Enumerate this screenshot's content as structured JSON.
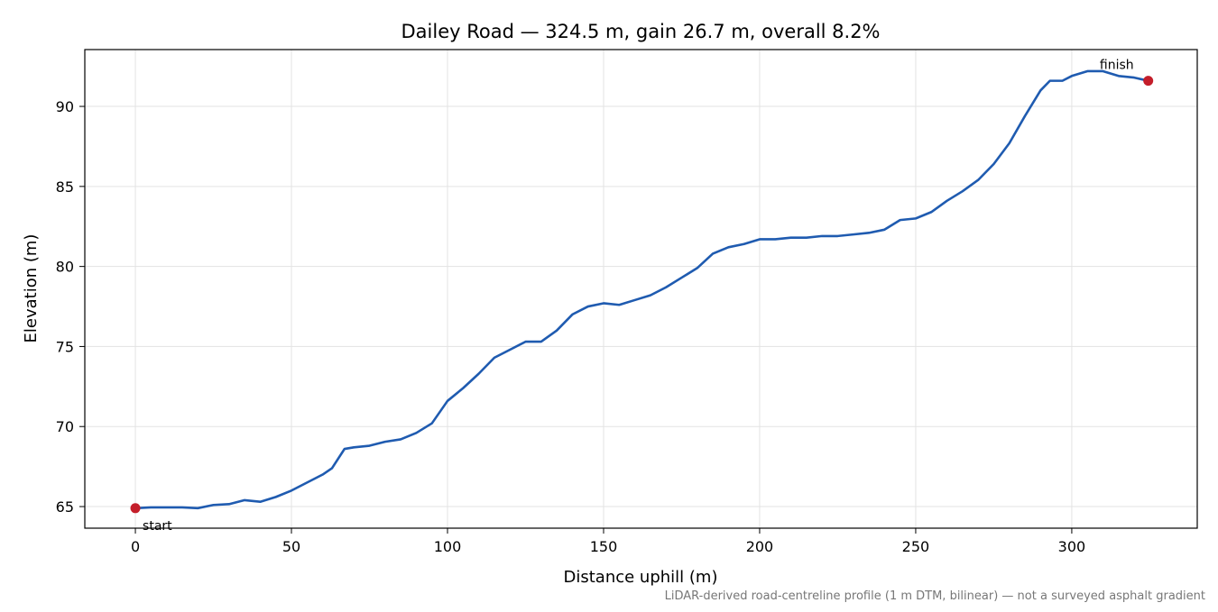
{
  "chart_data": {
    "type": "line",
    "title": "Dailey Road — 324.5 m, gain 26.7 m, overall 8.2%",
    "x_label": "Distance uphill (m)",
    "y_label": "Elevation (m)",
    "footnote": "LiDAR-derived road-centreline profile (1 m DTM, bilinear) — not a surveyed asphalt gradient",
    "x": [
      0,
      5,
      10,
      15,
      20,
      25,
      30,
      35,
      40,
      45,
      50,
      55,
      60,
      63,
      67,
      70,
      75,
      80,
      85,
      90,
      95,
      100,
      105,
      110,
      115,
      120,
      125,
      130,
      135,
      140,
      145,
      150,
      155,
      160,
      165,
      170,
      175,
      180,
      185,
      190,
      195,
      200,
      205,
      210,
      215,
      220,
      225,
      230,
      235,
      240,
      245,
      250,
      255,
      260,
      265,
      270,
      275,
      280,
      285,
      290,
      293,
      297,
      300,
      305,
      310,
      315,
      320,
      324.5
    ],
    "series": [
      {
        "color": "#1f5bb0",
        "values": [
          64.9,
          64.95,
          64.95,
          64.95,
          64.9,
          65.1,
          65.15,
          65.4,
          65.3,
          65.6,
          66.0,
          66.5,
          67.0,
          67.4,
          68.6,
          68.7,
          68.8,
          69.05,
          69.2,
          69.6,
          70.2,
          71.6,
          72.4,
          73.3,
          74.3,
          74.8,
          75.3,
          75.3,
          76.0,
          77.0,
          77.5,
          77.7,
          77.6,
          77.9,
          78.2,
          78.7,
          79.3,
          79.9,
          80.8,
          81.2,
          81.4,
          81.7,
          81.7,
          81.8,
          81.8,
          81.9,
          81.9,
          82.0,
          82.1,
          82.3,
          82.9,
          83.0,
          83.4,
          84.1,
          84.7,
          85.4,
          86.4,
          87.7,
          89.4,
          91.0,
          91.6,
          91.6,
          91.9,
          92.2,
          92.2,
          91.9,
          91.8,
          91.6
        ]
      }
    ],
    "endpoint_color": "#c41e2a",
    "annotations": [
      "start",
      "finish"
    ],
    "xlim": [
      -16.2,
      340.2
    ],
    "xticks": [
      0,
      50,
      100,
      150,
      200,
      250,
      300
    ],
    "ylim": [
      63.65,
      93.55
    ],
    "yticks": [
      65,
      70,
      75,
      80,
      85,
      90
    ],
    "grid": true
  }
}
